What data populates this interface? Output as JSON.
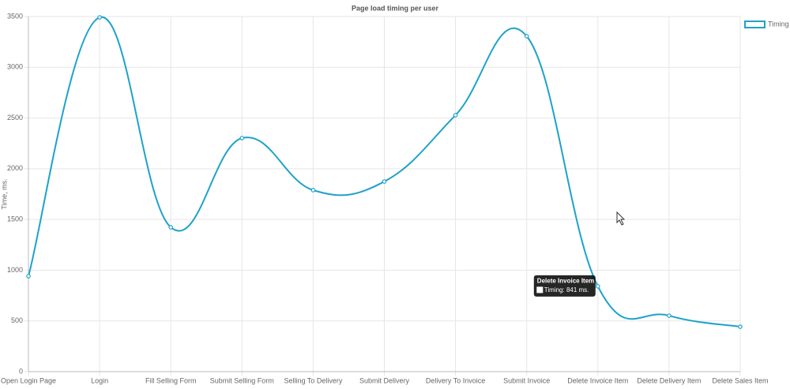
{
  "chart_data": {
    "type": "line",
    "title": "Page load timing per user",
    "y_label": "Time, ms.",
    "categories": [
      "Open Login Page",
      "Login",
      "Fill Selling Form",
      "Submit Selling Form",
      "Selling To Delivery",
      "Submit Delivery",
      "Delivery To Invoice",
      "Submit Invoice",
      "Delete Invoice Item",
      "Delete Delivery Item",
      "Delete Sales Item"
    ],
    "series": [
      {
        "name": "Timing",
        "color": "#1ea2c9",
        "values": [
          941,
          3492,
          1423,
          2302,
          1789,
          1874,
          2528,
          3306,
          841,
          552,
          443
        ]
      }
    ],
    "ylim": [
      0,
      3500
    ],
    "yticks": [
      0,
      500,
      1000,
      1500,
      2000,
      2500,
      3000,
      3500
    ],
    "grid": true,
    "legend": "top-right",
    "tooltip": {
      "title": "Delete Invoice Item",
      "body": "Timing: 841 ms."
    }
  }
}
